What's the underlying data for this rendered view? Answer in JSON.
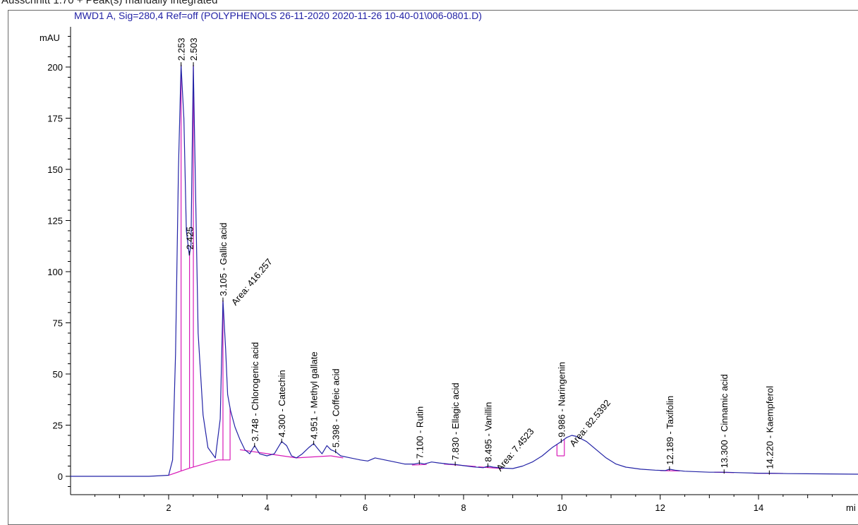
{
  "header": {
    "report_line": "Ausschnitt 1.70 + Peak(s) manually integrated"
  },
  "colors": {
    "trace": "#2323a6",
    "baseline": "#d81ab8",
    "title": "#2323a6",
    "axis": "#000000"
  },
  "chart_data": {
    "type": "line",
    "title": "MWD1 A, Sig=280,4 Ref=off (POLYPHENOLS  26-11-2020 2020-11-26 10-40-01\\006-0801.D)",
    "ylabel": "mAU",
    "xlabel": "mi",
    "xlim": [
      0,
      16.2
    ],
    "ylim": [
      -10,
      220
    ],
    "x_ticks": [
      2,
      4,
      6,
      8,
      10,
      12,
      14
    ],
    "y_ticks": [
      0,
      25,
      50,
      75,
      100,
      125,
      150,
      175,
      200
    ],
    "grid": false,
    "series": [
      {
        "x": [
          0,
          1.6,
          2.0,
          2.08,
          2.14,
          2.2,
          2.253,
          2.31,
          2.36,
          2.42,
          2.455,
          2.48,
          2.503,
          2.54,
          2.6,
          2.7,
          2.8,
          2.95,
          3.05,
          3.105,
          3.16,
          3.2,
          3.26,
          3.35,
          3.45,
          3.55,
          3.65,
          3.75,
          3.85,
          4.0,
          4.15,
          4.3,
          4.4,
          4.5,
          4.6,
          4.72,
          4.85,
          4.951,
          5.05,
          5.12,
          5.22,
          5.3,
          5.398,
          5.5,
          5.7,
          5.9,
          6.05,
          6.2,
          6.4,
          6.6,
          6.8,
          7.0,
          7.1,
          7.2,
          7.35,
          7.5,
          7.7,
          7.83,
          8.0,
          8.2,
          8.4,
          8.5,
          8.6,
          8.8,
          9.0,
          9.2,
          9.4,
          9.6,
          9.8,
          9.986,
          10.1,
          10.2,
          10.3,
          10.5,
          10.7,
          10.9,
          11.1,
          11.3,
          11.6,
          11.9,
          12.1,
          12.189,
          12.3,
          12.5,
          13.0,
          13.3,
          13.6,
          14.0,
          14.22,
          14.6,
          15.2,
          16.2
        ],
        "y": [
          0,
          0,
          0.5,
          8,
          60,
          150,
          201,
          175,
          120,
          108,
          113,
          160,
          201,
          150,
          70,
          30,
          14,
          9,
          28,
          86,
          62,
          40,
          32,
          24,
          18,
          13,
          11,
          15,
          11,
          10,
          11,
          17,
          15,
          10,
          9,
          11,
          14,
          16,
          13,
          11,
          15,
          13,
          12,
          10,
          9,
          8,
          7.5,
          9,
          8,
          7,
          6,
          6,
          6.5,
          6,
          7,
          6.5,
          6,
          5.8,
          5.2,
          4.6,
          4.2,
          5,
          4.5,
          4,
          3.8,
          5,
          7,
          10,
          14,
          17,
          19,
          20,
          19.5,
          17,
          13,
          9,
          6,
          4.5,
          3.5,
          3,
          2.8,
          3.5,
          3,
          2.5,
          2,
          2,
          1.8,
          1.5,
          1.5,
          1.3,
          1.2,
          1
        ]
      }
    ],
    "peaks": [
      {
        "rt": 2.253,
        "label": "2.253"
      },
      {
        "rt": 2.425,
        "label": "2.425"
      },
      {
        "rt": 2.503,
        "label": "2.503"
      },
      {
        "rt": 3.105,
        "label": "3.105 -  Gallic acid",
        "area": "Area: 416.257"
      },
      {
        "rt": 3.748,
        "label": "3.748 -  Chlorogenic acid"
      },
      {
        "rt": 4.3,
        "label": "4.300 -  Catechin"
      },
      {
        "rt": 4.951,
        "label": "4.951 -  Methyl gallate"
      },
      {
        "rt": 5.398,
        "label": "5.398 -  Coffeic acid"
      },
      {
        "rt": 7.1,
        "label": "7.100 -  Rutin"
      },
      {
        "rt": 7.83,
        "label": "7.830 -  Ellagic acid"
      },
      {
        "rt": 8.495,
        "label": "8.495 -  Vanillin",
        "area": "Area: 7.4523"
      },
      {
        "rt": 9.986,
        "label": "9.986 -  Naringenin",
        "area": "Area: 82.5392"
      },
      {
        "rt": 12.189,
        "label": "12.189 -  Taxifolin"
      },
      {
        "rt": 13.3,
        "label": "13.300 -  Cinnamic acid"
      },
      {
        "rt": 14.22,
        "label": "14.220 -  Kaempferol"
      }
    ],
    "baselines": [
      [
        [
          2.0,
          0.5
        ],
        [
          2.425,
          4
        ]
      ],
      [
        [
          2.425,
          4
        ],
        [
          3.0,
          8
        ]
      ],
      [
        [
          3.0,
          8
        ],
        [
          3.25,
          8
        ]
      ],
      [
        [
          3.45,
          13
        ],
        [
          4.6,
          9
        ]
      ],
      [
        [
          4.6,
          9
        ],
        [
          5.3,
          10
        ]
      ],
      [
        [
          5.3,
          10
        ],
        [
          5.55,
          9
        ]
      ],
      [
        [
          6.95,
          5.5
        ],
        [
          7.25,
          5.8
        ]
      ],
      [
        [
          7.6,
          6
        ],
        [
          8.25,
          4.8
        ]
      ],
      [
        [
          8.3,
          4.6
        ],
        [
          8.8,
          3.8
        ]
      ],
      [
        [
          9.9,
          10
        ],
        [
          10.05,
          10
        ]
      ],
      [
        [
          12.0,
          2.8
        ],
        [
          12.4,
          2.6
        ]
      ],
      [
        [
          13.1,
          2
        ],
        [
          13.5,
          1.8
        ]
      ],
      [
        [
          13.9,
          1.5
        ],
        [
          14.5,
          1.4
        ]
      ]
    ],
    "drop_lines": [
      2.253,
      2.425,
      2.503,
      3.105,
      3.25,
      9.9,
      10.05
    ]
  }
}
